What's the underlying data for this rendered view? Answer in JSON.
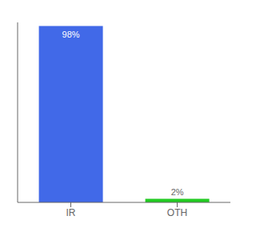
{
  "chart_data": {
    "type": "bar",
    "categories": [
      "IR",
      "OTH"
    ],
    "values": [
      98,
      2
    ],
    "colors": [
      "#4169e8",
      "#22cc22"
    ],
    "ylim": [
      0,
      100
    ],
    "data_labels": true,
    "value_labels": [
      "98%",
      "2%"
    ],
    "tick_labels": "x",
    "grid": false
  }
}
